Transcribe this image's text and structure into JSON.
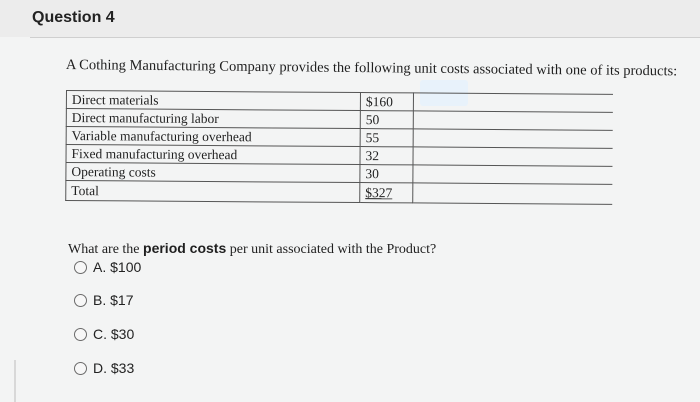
{
  "question": {
    "title": "Question 4",
    "intro": "A Cothing Manufacturing Company provides the following unit costs associated with one of its products:",
    "prompt_before": "What are the",
    "prompt_bold": "period costs",
    "prompt_after": "per unit associated with the Product?"
  },
  "cost_table": {
    "rows": [
      {
        "label": "Direct materials",
        "value": "$160"
      },
      {
        "label": "Direct manufacturing labor",
        "value": "50"
      },
      {
        "label": "Variable manufacturing overhead",
        "value": "55"
      },
      {
        "label": "Fixed manufacturing overhead",
        "value": "32"
      },
      {
        "label": "Operating costs",
        "value": "30"
      },
      {
        "label": "Total",
        "value": "$327"
      }
    ]
  },
  "choices": [
    {
      "letter": "A.",
      "text": "$100"
    },
    {
      "letter": "B.",
      "text": "$17"
    },
    {
      "letter": "C.",
      "text": "$30"
    },
    {
      "letter": "D.",
      "text": "$33"
    }
  ],
  "colors": {
    "background": "#f3f4f4",
    "header": "#ececec",
    "table_border": "#555555"
  }
}
